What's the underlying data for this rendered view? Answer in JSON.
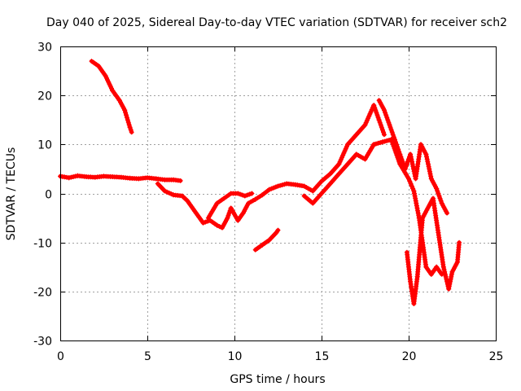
{
  "chart_data": {
    "type": "scatter",
    "title": "Day 040 of 2025, Sidereal Day-to-day VTEC variation (SDTVAR) for receiver sch2",
    "xlabel": "GPS time / hours",
    "ylabel": "SDTVAR / TECUs",
    "xlim": [
      0,
      25
    ],
    "ylim": [
      -30,
      30
    ],
    "xticks": [
      0,
      5,
      10,
      15,
      20,
      25
    ],
    "yticks": [
      -30,
      -20,
      -10,
      0,
      10,
      20,
      30
    ],
    "grid": true,
    "marker": "plus",
    "color": "#ff0000",
    "series": [
      {
        "name": "sdtvar-main",
        "points": [
          [
            0,
            3.5
          ],
          [
            0.5,
            3.2
          ],
          [
            1,
            3.6
          ],
          [
            1.5,
            3.4
          ],
          [
            2,
            3.3
          ],
          [
            2.5,
            3.5
          ],
          [
            3,
            3.4
          ],
          [
            3.5,
            3.3
          ],
          [
            4,
            3.1
          ],
          [
            4.5,
            3.0
          ],
          [
            5,
            3.2
          ],
          [
            5.5,
            3.0
          ],
          [
            6,
            2.8
          ],
          [
            6.5,
            2.8
          ],
          [
            6.9,
            2.6
          ]
        ]
      },
      {
        "name": "sdtvar-dip",
        "points": [
          [
            5.6,
            2.0
          ],
          [
            6,
            0.5
          ],
          [
            6.5,
            -0.3
          ],
          [
            7,
            -0.5
          ],
          [
            7.3,
            -1.5
          ],
          [
            7.8,
            -4
          ],
          [
            8.2,
            -6
          ],
          [
            8.6,
            -5.5
          ],
          [
            9,
            -6.5
          ],
          [
            9.3,
            -7
          ],
          [
            9.6,
            -5
          ],
          [
            9.8,
            -3
          ],
          [
            10.2,
            -5.5
          ],
          [
            10.5,
            -4
          ],
          [
            10.8,
            -2
          ],
          [
            11.2,
            -1.2
          ],
          [
            11.6,
            -0.3
          ],
          [
            12,
            0.8
          ],
          [
            12.5,
            1.5
          ],
          [
            13,
            2
          ],
          [
            13.5,
            1.8
          ],
          [
            14,
            1.5
          ],
          [
            14.5,
            0.5
          ],
          [
            15,
            2.5
          ],
          [
            15.5,
            4
          ],
          [
            16,
            6
          ],
          [
            16.5,
            10
          ],
          [
            17,
            12
          ],
          [
            17.5,
            14
          ],
          [
            18,
            18
          ],
          [
            18.3,
            15
          ],
          [
            18.6,
            12
          ]
        ]
      },
      {
        "name": "sdtvar-lower-branch",
        "points": [
          [
            8.5,
            -5
          ],
          [
            9,
            -2
          ],
          [
            9.4,
            -1
          ],
          [
            9.8,
            0
          ],
          [
            10.2,
            0
          ],
          [
            10.6,
            -0.5
          ],
          [
            11,
            0
          ]
        ]
      },
      {
        "name": "sdtvar-second-band",
        "points": [
          [
            14,
            -0.5
          ],
          [
            14.5,
            -2
          ],
          [
            15,
            0
          ],
          [
            15.5,
            2
          ],
          [
            16,
            4
          ],
          [
            16.5,
            6
          ],
          [
            17,
            8
          ],
          [
            17.5,
            7
          ],
          [
            18,
            10
          ],
          [
            18.5,
            10.5
          ],
          [
            19,
            11
          ],
          [
            19.5,
            6
          ],
          [
            20,
            3
          ],
          [
            20.3,
            0.5
          ],
          [
            20.6,
            -5
          ],
          [
            20.8,
            -10
          ],
          [
            21,
            -15
          ],
          [
            21.3,
            -16.5
          ],
          [
            21.6,
            -15
          ],
          [
            21.9,
            -16.5
          ]
        ]
      },
      {
        "name": "sdtvar-upper-branch",
        "points": [
          [
            18.3,
            19
          ],
          [
            18.6,
            17
          ],
          [
            18.9,
            14
          ],
          [
            19.2,
            11
          ],
          [
            19.5,
            8
          ],
          [
            19.8,
            5
          ],
          [
            20.1,
            8
          ],
          [
            20.4,
            3
          ],
          [
            20.7,
            10
          ],
          [
            21,
            8
          ],
          [
            21.3,
            3
          ],
          [
            21.6,
            1
          ],
          [
            21.9,
            -2
          ],
          [
            22.2,
            -4
          ]
        ]
      },
      {
        "name": "sdtvar-tail",
        "points": [
          [
            19.9,
            -12
          ],
          [
            20.1,
            -18
          ],
          [
            20.3,
            -22.5
          ],
          [
            20.5,
            -17
          ],
          [
            20.8,
            -5
          ],
          [
            21.1,
            -3
          ],
          [
            21.4,
            -1
          ],
          [
            21.7,
            -8
          ],
          [
            22,
            -15
          ],
          [
            22.3,
            -19.5
          ],
          [
            22.5,
            -16
          ],
          [
            22.8,
            -14
          ],
          [
            22.9,
            -10
          ]
        ]
      },
      {
        "name": "sdtvar-early-segment",
        "points": [
          [
            1.8,
            27
          ],
          [
            2.2,
            26
          ],
          [
            2.6,
            24
          ],
          [
            3,
            21
          ],
          [
            3.4,
            19
          ],
          [
            3.7,
            17
          ],
          [
            4,
            13.5
          ],
          [
            4.1,
            12.5
          ]
        ]
      },
      {
        "name": "sdtvar-isolated-segment",
        "points": [
          [
            11.2,
            -11.5
          ],
          [
            11.6,
            -10.5
          ],
          [
            12,
            -9.5
          ],
          [
            12.4,
            -8
          ],
          [
            12.5,
            -7.5
          ]
        ]
      }
    ]
  }
}
